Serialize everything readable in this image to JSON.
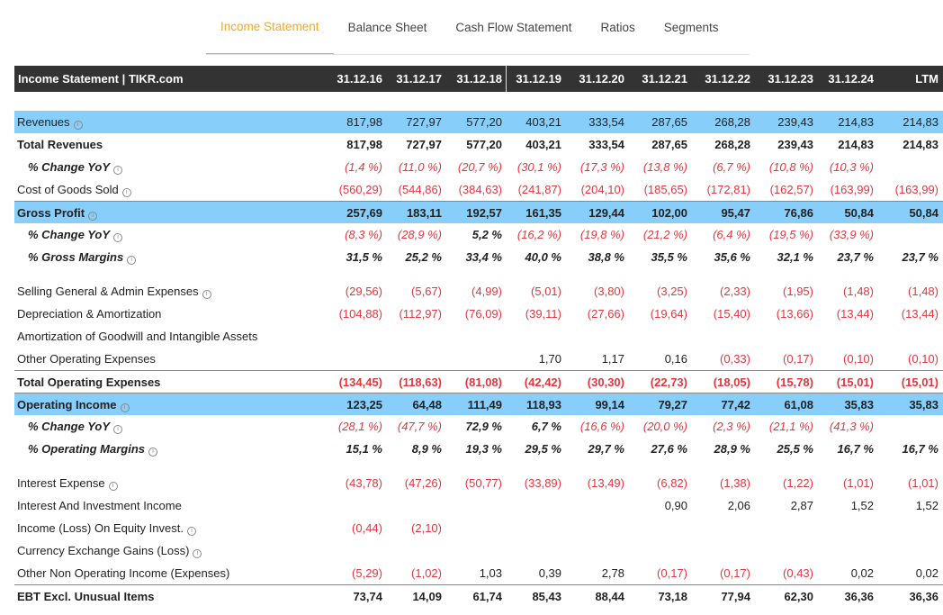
{
  "tabs": [
    "Income Statement",
    "Balance Sheet",
    "Cash Flow Statement",
    "Ratios",
    "Segments"
  ],
  "active_tab": 0,
  "header": {
    "title": "Income Statement | TIKR.com",
    "periods": [
      "31.12.16",
      "31.12.17",
      "31.12.18",
      "31.12.19",
      "31.12.20",
      "31.12.21",
      "31.12.22",
      "31.12.23",
      "31.12.24",
      "LTM"
    ]
  },
  "rows": [
    {
      "label": "Revenues",
      "info": true,
      "style": "hl",
      "values": [
        "817,98",
        "727,97",
        "577,20",
        "403,21",
        "333,54",
        "287,65",
        "268,28",
        "239,43",
        "214,83",
        "214,83"
      ]
    },
    {
      "label": "Total Revenues",
      "style": "bold",
      "values": [
        "817,98",
        "727,97",
        "577,20",
        "403,21",
        "333,54",
        "287,65",
        "268,28",
        "239,43",
        "214,83",
        "214,83"
      ]
    },
    {
      "label": "% Change YoY",
      "info": true,
      "style": "pct",
      "values": [
        "(1,4 %)",
        "(11,0 %)",
        "(20,7 %)",
        "(30,1 %)",
        "(17,3 %)",
        "(13,8 %)",
        "(6,7 %)",
        "(10,8 %)",
        "(10,3 %)",
        ""
      ]
    },
    {
      "label": "Cost of Goods Sold",
      "info": true,
      "style": "",
      "values": [
        "(560,29)",
        "(544,86)",
        "(384,63)",
        "(241,87)",
        "(204,10)",
        "(185,65)",
        "(172,81)",
        "(162,57)",
        "(163,99)",
        "(163,99)"
      ]
    },
    {
      "label": "Gross Profit",
      "info": true,
      "style": "hl bold bt",
      "values": [
        "257,69",
        "183,11",
        "192,57",
        "161,35",
        "129,44",
        "102,00",
        "95,47",
        "76,86",
        "50,84",
        "50,84"
      ]
    },
    {
      "label": "% Change YoY",
      "info": true,
      "style": "pct",
      "values": [
        "(8,3 %)",
        "(28,9 %)",
        "5,2 %",
        "(16,2 %)",
        "(19,8 %)",
        "(21,2 %)",
        "(6,4 %)",
        "(19,5 %)",
        "(33,9 %)",
        ""
      ]
    },
    {
      "label": "% Gross Margins",
      "info": true,
      "style": "pct",
      "values": [
        "31,5 %",
        "25,2 %",
        "33,4 %",
        "40,0 %",
        "38,8 %",
        "35,5 %",
        "35,6 %",
        "32,1 %",
        "23,7 %",
        "23,7 %"
      ]
    },
    {
      "style": "gap"
    },
    {
      "label": "Selling General & Admin Expenses",
      "info": true,
      "style": "",
      "values": [
        "(29,56)",
        "(5,67)",
        "(4,99)",
        "(5,01)",
        "(3,80)",
        "(3,25)",
        "(2,33)",
        "(1,95)",
        "(1,48)",
        "(1,48)"
      ]
    },
    {
      "label": "Depreciation & Amortization",
      "style": "",
      "values": [
        "(104,88)",
        "(112,97)",
        "(76,09)",
        "(39,11)",
        "(27,66)",
        "(19,64)",
        "(15,40)",
        "(13,66)",
        "(13,44)",
        "(13,44)"
      ]
    },
    {
      "label": "Amortization of Goodwill and Intangible Assets",
      "style": "",
      "values": [
        "",
        "",
        "",
        "",
        "",
        "",
        "",
        "",
        "",
        ""
      ]
    },
    {
      "label": "Other Operating Expenses",
      "style": "",
      "values": [
        "",
        "",
        "",
        "1,70",
        "1,17",
        "0,16",
        "(0,33)",
        "(0,17)",
        "(0,10)",
        "(0,10)"
      ]
    },
    {
      "label": "Total Operating Expenses",
      "style": "bold bt",
      "values": [
        "(134,45)",
        "(118,63)",
        "(81,08)",
        "(42,42)",
        "(30,30)",
        "(22,73)",
        "(18,05)",
        "(15,78)",
        "(15,01)",
        "(15,01)"
      ]
    },
    {
      "label": "Operating Income",
      "info": true,
      "style": "hl bold bt",
      "values": [
        "123,25",
        "64,48",
        "111,49",
        "118,93",
        "99,14",
        "79,27",
        "77,42",
        "61,08",
        "35,83",
        "35,83"
      ]
    },
    {
      "label": "% Change YoY",
      "info": true,
      "style": "pct",
      "values": [
        "(28,1 %)",
        "(47,7 %)",
        "72,9 %",
        "6,7 %",
        "(16,6 %)",
        "(20,0 %)",
        "(2,3 %)",
        "(21,1 %)",
        "(41,3 %)",
        ""
      ]
    },
    {
      "label": "% Operating Margins",
      "info": true,
      "style": "pct",
      "values": [
        "15,1 %",
        "8,9 %",
        "19,3 %",
        "29,5 %",
        "29,7 %",
        "27,6 %",
        "28,9 %",
        "25,5 %",
        "16,7 %",
        "16,7 %"
      ]
    },
    {
      "style": "gap"
    },
    {
      "label": "Interest Expense",
      "info": true,
      "style": "",
      "values": [
        "(43,78)",
        "(47,26)",
        "(50,77)",
        "(33,89)",
        "(13,49)",
        "(6,82)",
        "(1,38)",
        "(1,22)",
        "(1,01)",
        "(1,01)"
      ]
    },
    {
      "label": "Interest And Investment Income",
      "style": "",
      "values": [
        "",
        "",
        "",
        "",
        "",
        "0,90",
        "2,06",
        "2,87",
        "1,52",
        "1,52"
      ]
    },
    {
      "label": "Income (Loss) On Equity Invest.",
      "info": true,
      "style": "",
      "values": [
        "(0,44)",
        "(2,10)",
        "",
        "",
        "",
        "",
        "",
        "",
        "",
        ""
      ]
    },
    {
      "label": "Currency Exchange Gains (Loss)",
      "info": true,
      "style": "",
      "values": [
        "",
        "",
        "",
        "",
        "",
        "",
        "",
        "",
        "",
        ""
      ]
    },
    {
      "label": "Other Non Operating Income (Expenses)",
      "style": "",
      "values": [
        "(5,29)",
        "(1,02)",
        "1,03",
        "0,39",
        "2,78",
        "(0,17)",
        "(0,17)",
        "(0,43)",
        "0,02",
        "0,02"
      ]
    },
    {
      "label": "EBT Excl. Unusual Items",
      "style": "bold bt",
      "values": [
        "73,74",
        "14,09",
        "61,74",
        "85,43",
        "88,44",
        "73,18",
        "77,94",
        "62,30",
        "36,36",
        "36,36"
      ]
    }
  ]
}
